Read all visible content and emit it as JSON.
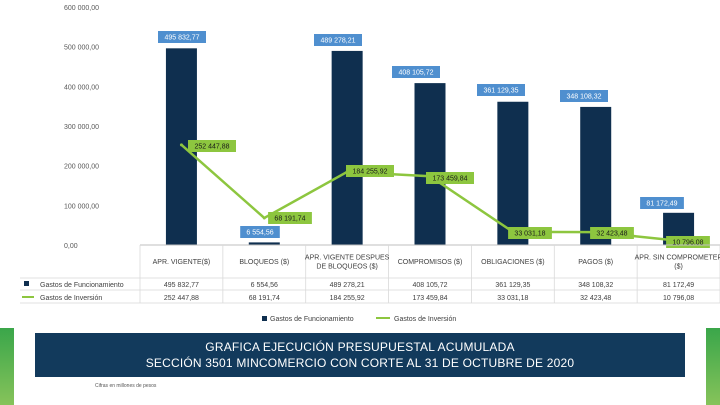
{
  "chart_data": {
    "type": "bar",
    "title": "GRAFICA EJECUCIÓN PRESUPUESTAL ACUMULADA",
    "subtitle": "SECCIÓN 3501 MINCOMERCIO CON CORTE AL 31 DE OCTUBRE DE 2020",
    "categories": [
      "APR. VIGENTE($)",
      "BLOQUEOS ($)",
      "APR. VIGENTE DESPUES DE BLOQUEOS ($)",
      "COMPROMISOS ($)",
      "OBLIGACIONES ($)",
      "PAGOS ($)",
      "APR. SIN COMPROMETER ($)"
    ],
    "series": [
      {
        "name": "Gastos de Funcionamiento",
        "type": "bar",
        "color": "#0f2f4f",
        "values": [
          495832.77,
          6554.56,
          489278.21,
          408105.72,
          361129.35,
          348108.32,
          81172.49
        ],
        "labels": [
          "495 832,77",
          "6 554,56",
          "489 278,21",
          "408 105,72",
          "361 129,35",
          "348 108,32",
          "81 172,49"
        ]
      },
      {
        "name": "Gastos de Inversión",
        "type": "line",
        "color": "#8dc63f",
        "values": [
          252447.88,
          68191.74,
          184255.92,
          173459.84,
          33031.18,
          32423.48,
          10796.08
        ],
        "labels": [
          "252 447,88",
          "68 191,74",
          "184 255,92",
          "173 459,84",
          "33 031,18",
          "32 423,48",
          "10 796,08"
        ]
      }
    ],
    "ylim": [
      0,
      600000
    ],
    "yticks": [
      "0,00",
      "100 000,00",
      "200 000,00",
      "300 000,00",
      "400 000,00",
      "500 000,00",
      "600 000,00"
    ],
    "legend": "bottom",
    "grid": false
  },
  "footnote": "Cifras en millones de pesos"
}
